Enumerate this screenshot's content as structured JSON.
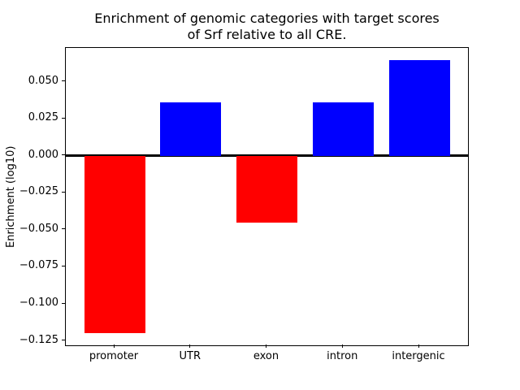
{
  "chart_data": {
    "type": "bar",
    "title_lines": [
      "Enrichment of genomic categories with target scores",
      "of Srf relative to all CRE."
    ],
    "ylabel": "Enrichment (log10)",
    "xlabel": "",
    "categories": [
      "promoter",
      "UTR",
      "exon",
      "intron",
      "intergenic"
    ],
    "values": [
      -0.12,
      0.036,
      -0.045,
      0.036,
      0.0645
    ],
    "bar_colors": [
      "#ff0000",
      "#0000ff",
      "#ff0000",
      "#0000ff",
      "#0000ff"
    ],
    "positive_color": "#0000ff",
    "negative_color": "#ff0000",
    "bar_width": 0.8,
    "ylim": [
      -0.128,
      0.073
    ],
    "xlim": [
      -0.64,
      4.64
    ],
    "yticks": [
      {
        "value": 0.05,
        "label": "0.050"
      },
      {
        "value": 0.025,
        "label": "0.025"
      },
      {
        "value": 0.0,
        "label": "0.000"
      },
      {
        "value": -0.025,
        "label": "−0.025"
      },
      {
        "value": -0.05,
        "label": "−0.050"
      },
      {
        "value": -0.075,
        "label": "−0.075"
      },
      {
        "value": -0.1,
        "label": "−0.100"
      },
      {
        "value": -0.125,
        "label": "−0.125"
      }
    ],
    "zero_line": true,
    "grid": false,
    "legend": null,
    "background_color": "#ffffff"
  }
}
